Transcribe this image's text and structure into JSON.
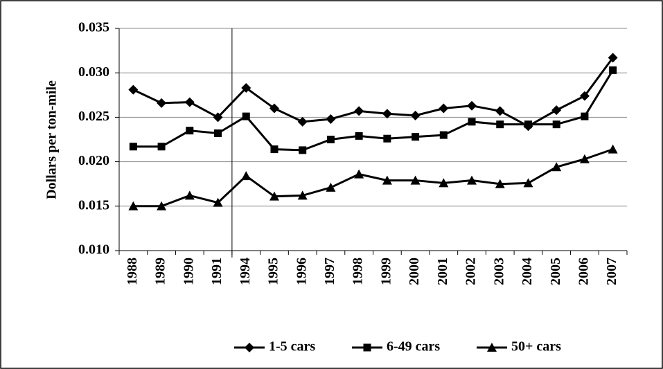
{
  "chart_data": {
    "type": "line",
    "y_label": "Dollars per ton-mile",
    "categories": [
      "1988",
      "1989",
      "1990",
      "1991",
      "1994",
      "1995",
      "1996",
      "1997",
      "1998",
      "1999",
      "2000",
      "2001",
      "2002",
      "2003",
      "2004",
      "2005",
      "2006",
      "2007"
    ],
    "series": [
      {
        "name": "1-5 cars",
        "color": "#000000",
        "marker": "diamond",
        "values": [
          0.0281,
          0.0266,
          0.0267,
          0.025,
          0.0283,
          0.026,
          0.0245,
          0.0248,
          0.0257,
          0.0254,
          0.0252,
          0.026,
          0.0263,
          0.0257,
          0.024,
          0.0258,
          0.0274,
          0.0317
        ]
      },
      {
        "name": "6-49 cars",
        "color": "#000000",
        "marker": "square",
        "values": [
          0.0217,
          0.0217,
          0.0235,
          0.0232,
          0.0251,
          0.0214,
          0.0213,
          0.0225,
          0.0229,
          0.0226,
          0.0228,
          0.023,
          0.0245,
          0.0242,
          0.0242,
          0.0242,
          0.0251,
          0.0303
        ]
      },
      {
        "name": "50+ cars",
        "color": "#000000",
        "marker": "triangle",
        "values": [
          0.015,
          0.015,
          0.0162,
          0.0154,
          0.0184,
          0.0161,
          0.0162,
          0.0171,
          0.0186,
          0.0179,
          0.0179,
          0.0176,
          0.0179,
          0.0175,
          0.0176,
          0.0194,
          0.0203,
          0.0214
        ]
      }
    ],
    "ylim": [
      0.01,
      0.035
    ],
    "yticks": [
      {
        "value": 0.01,
        "label": "0.010"
      },
      0.015,
      {
        "value": 0.02,
        "label": "0.020"
      },
      0.025,
      {
        "value": 0.03,
        "label": "0.030"
      },
      0.035
    ],
    "grid": true,
    "legend": "bottom"
  }
}
